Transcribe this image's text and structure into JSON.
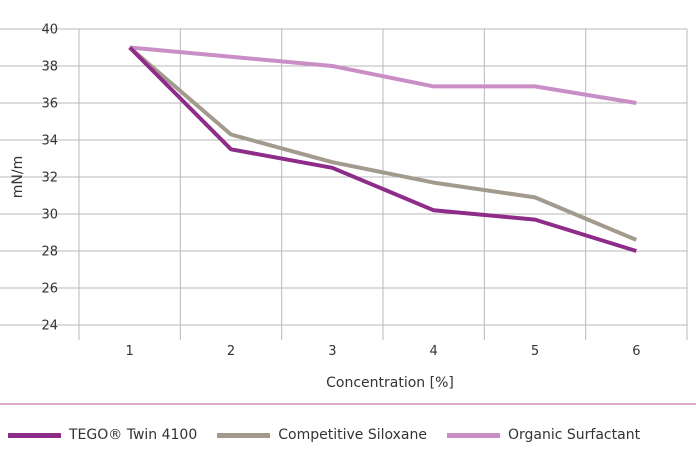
{
  "chart_data": {
    "type": "line",
    "x": [
      1,
      2,
      3,
      4,
      5,
      6
    ],
    "xlabel": "Concentration [%]",
    "ylabel": "mN/m",
    "ylim": [
      24,
      40
    ],
    "yticks": [
      24,
      26,
      28,
      30,
      32,
      34,
      36,
      38,
      40
    ],
    "grid": true,
    "legend_position": "bottom",
    "series": [
      {
        "name": "TEGO® Twin 4100",
        "color": "#8e2c8a",
        "values": [
          39.0,
          33.5,
          32.5,
          30.2,
          29.7,
          28.0
        ]
      },
      {
        "name": "Competitive Siloxane",
        "color": "#a39a8e",
        "values": [
          39.0,
          34.3,
          32.8,
          31.7,
          30.9,
          28.6
        ]
      },
      {
        "name": "Organic Surfactant",
        "color": "#c98ec6",
        "values": [
          39.0,
          38.5,
          38.0,
          36.9,
          36.9,
          36.0
        ]
      }
    ]
  },
  "accent_color": "#8e2c8a"
}
